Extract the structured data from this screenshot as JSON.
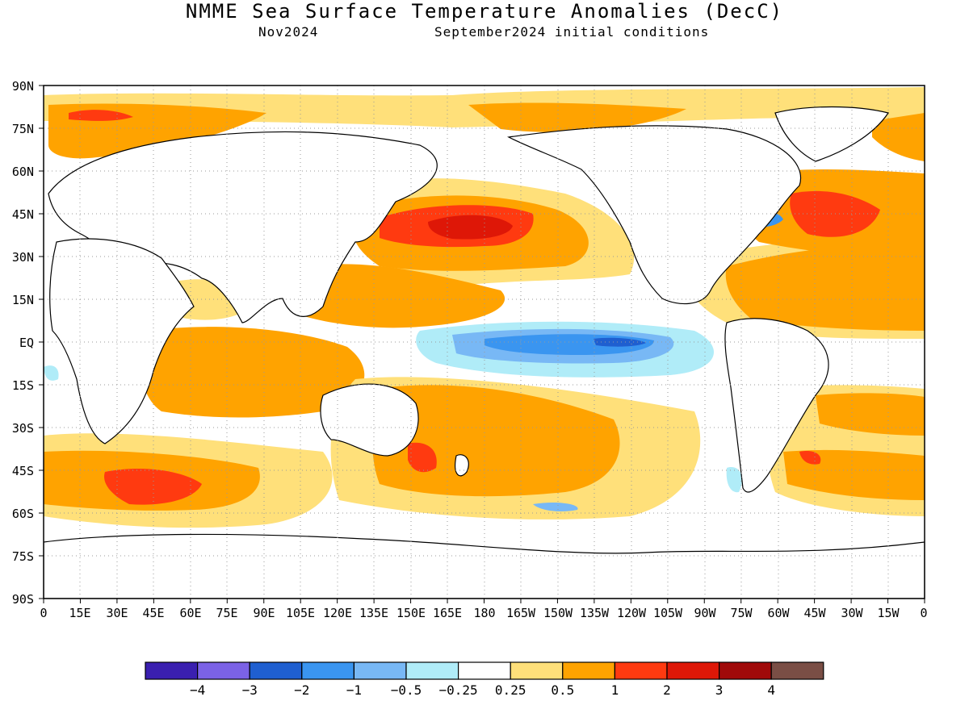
{
  "title": "NMME Sea Surface Temperature Anomalies (DecC)",
  "subtitle_left": "Nov2024",
  "subtitle_right": "September2024 initial conditions",
  "lat_labels": [
    "90N",
    "75N",
    "60N",
    "45N",
    "30N",
    "15N",
    "EQ",
    "15S",
    "30S",
    "45S",
    "60S",
    "75S",
    "90S"
  ],
  "lon_labels": [
    "0",
    "15E",
    "30E",
    "45E",
    "60E",
    "75E",
    "90E",
    "105E",
    "120E",
    "135E",
    "150E",
    "165E",
    "180",
    "165W",
    "150W",
    "135W",
    "120W",
    "105W",
    "90W",
    "75W",
    "60W",
    "45W",
    "30W",
    "15W",
    "0"
  ],
  "colorbar": {
    "colors": [
      "#3a1fb0",
      "#7b62e6",
      "#1f5fd0",
      "#3a95f0",
      "#78b8f5",
      "#b0ecf8",
      "#ffffff",
      "#ffe07a",
      "#ffa300",
      "#ff3a10",
      "#de1707",
      "#a00a0a",
      "#7a4e45"
    ],
    "tick_labels": [
      "-4",
      "-3",
      "-2",
      "-1",
      "-0.5",
      "-0.25",
      "0.25",
      "0.5",
      "1",
      "2",
      "3",
      "4"
    ]
  }
}
